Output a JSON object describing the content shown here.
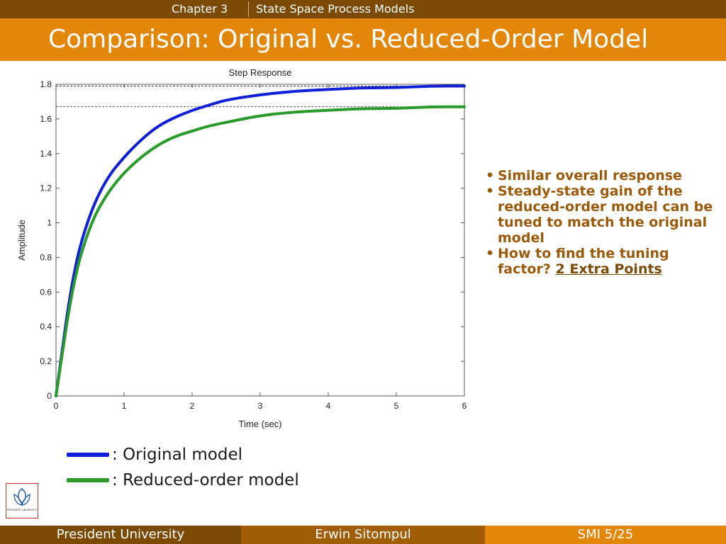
{
  "header": {
    "chapter": "Chapter 3",
    "subject": "State Space Process Models",
    "title": "Comparison: Original vs. Reduced-Order Model"
  },
  "bullets": {
    "item1": "Similar overall response",
    "item2": "Steady-state gain of the reduced-order model can be tuned to match the original model",
    "item3_text": "How to find the tuning factor? ",
    "item3_link": "2 Extra Points"
  },
  "legend": {
    "original": ": Original model",
    "reduced": ": Reduced-order model"
  },
  "footer": {
    "left": "President University",
    "center": "Erwin Sitompul",
    "right": "SMI 5/25"
  },
  "colors": {
    "original": "#1020d8",
    "reduced": "#2a9a2a",
    "header_dark": "#7a4a06",
    "header_orange": "#e3870b",
    "bullet_text": "#9a5a0a"
  },
  "logo": {
    "icon": "president-university-logo-icon",
    "text": "PRESIDENT UNIVERSITY"
  },
  "chart_data": {
    "type": "line",
    "title": "Step Response",
    "xlabel": "Time (sec)",
    "ylabel": "Amplitude",
    "xlim": [
      0,
      6
    ],
    "ylim": [
      0,
      1.8
    ],
    "xticks": [
      0,
      1,
      2,
      3,
      4,
      5,
      6
    ],
    "yticks": [
      0,
      0.2,
      0.4,
      0.6,
      0.8,
      1,
      1.2,
      1.4,
      1.6,
      1.8
    ],
    "ytick_labels": [
      "0",
      "0.2",
      "0.4",
      "0.6",
      "0.8",
      "1",
      "1.2",
      "1.4",
      "1.6",
      "1.8"
    ],
    "grid": false,
    "reference_lines": [
      1.79,
      1.67
    ],
    "series": [
      {
        "key": "original",
        "x": [
          0,
          0.25,
          0.5,
          0.75,
          1.0,
          1.25,
          1.5,
          1.75,
          2.0,
          2.25,
          2.5,
          3.0,
          3.5,
          4.0,
          4.5,
          5.0,
          5.5,
          6.0
        ],
        "y": [
          0,
          0.72,
          1.06,
          1.26,
          1.38,
          1.48,
          1.56,
          1.61,
          1.65,
          1.68,
          1.71,
          1.74,
          1.76,
          1.77,
          1.78,
          1.78,
          1.79,
          1.79
        ]
      },
      {
        "key": "reduced",
        "x": [
          0,
          0.25,
          0.5,
          0.75,
          1.0,
          1.25,
          1.5,
          1.75,
          2.0,
          2.25,
          2.5,
          3.0,
          3.5,
          4.0,
          4.5,
          5.0,
          5.5,
          6.0
        ],
        "y": [
          0,
          0.66,
          0.99,
          1.17,
          1.29,
          1.38,
          1.45,
          1.5,
          1.53,
          1.56,
          1.58,
          1.62,
          1.64,
          1.65,
          1.66,
          1.66,
          1.67,
          1.67
        ]
      }
    ]
  }
}
